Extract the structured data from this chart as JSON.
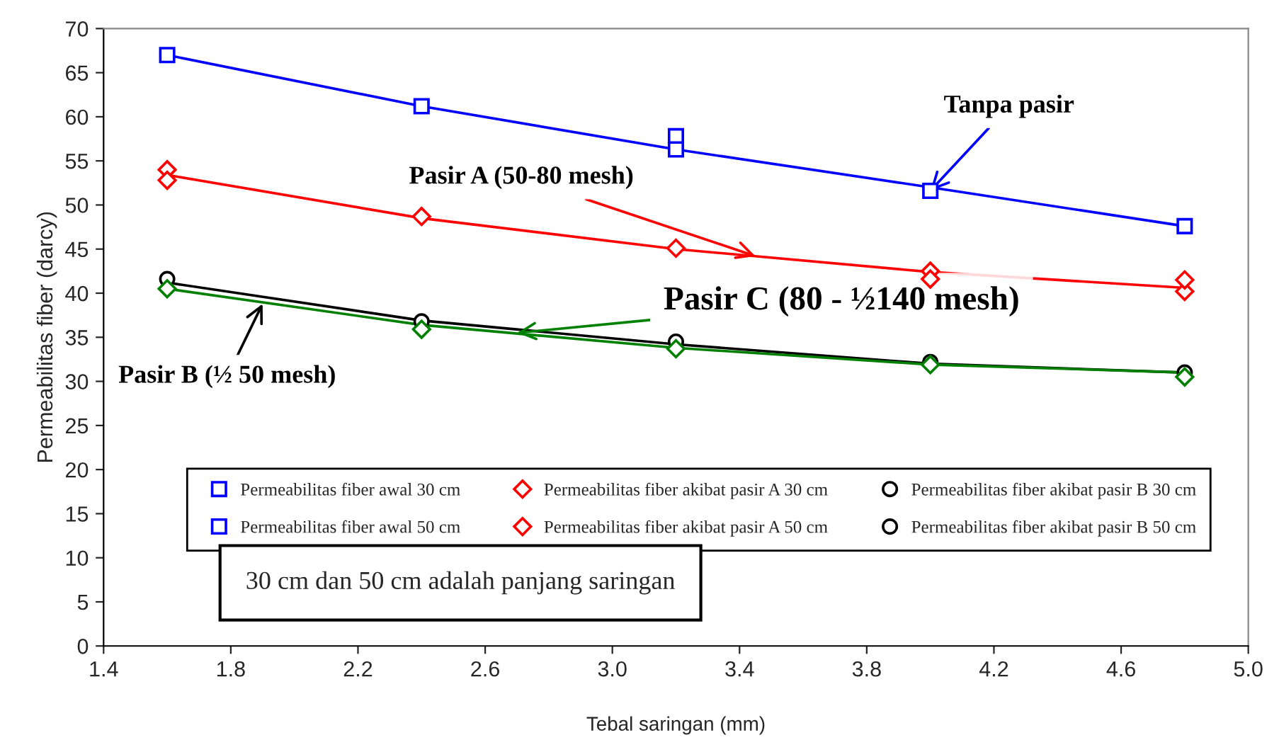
{
  "chart_data": {
    "type": "scatter",
    "xlabel": "Tebal saringan (mm)",
    "ylabel": "Permeabilitas fiber (darcy)",
    "x": [
      1.6,
      2.4,
      3.2,
      4.0,
      4.8
    ],
    "series": [
      {
        "name": "Permeabilitas fiber awal 30 cm",
        "color": "#0000ff",
        "marker": "square",
        "values": [
          null,
          null,
          57.8,
          null,
          null
        ]
      },
      {
        "name": "Permeabilitas fiber awal 50 cm",
        "color": "#0000ff",
        "marker": "square",
        "values": [
          67.0,
          61.2,
          56.3,
          51.6,
          47.6
        ]
      },
      {
        "name": "Permeabilitas fiber akibat pasir A 30 cm",
        "color": "#ff0000",
        "marker": "diamond",
        "values": [
          54.0,
          null,
          null,
          42.5,
          40.2
        ]
      },
      {
        "name": "Permeabilitas fiber akibat pasir A 50 cm",
        "color": "#ff0000",
        "marker": "diamond",
        "values": [
          52.8,
          48.7,
          45.1,
          41.6,
          41.5
        ]
      },
      {
        "name": "Permeabilitas fiber akibat pasir B 30 cm",
        "color": "#000000",
        "marker": "circle",
        "values": [
          null,
          36.8,
          34.5,
          32.2,
          31.0
        ]
      },
      {
        "name": "Permeabilitas fiber akibat pasir B 50 cm",
        "color": "#000000",
        "marker": "circle",
        "values": [
          41.6,
          null,
          null,
          null,
          null
        ]
      },
      {
        "color": "#008000",
        "marker": "diamond",
        "values": [
          40.5,
          35.9,
          33.7,
          31.9,
          30.5
        ]
      },
      {
        "type": "line",
        "color": "#0000ff",
        "marker": "none",
        "values": [
          67.0,
          61.2,
          56.3,
          52.0,
          47.6
        ]
      },
      {
        "type": "line",
        "color": "#ff0000",
        "marker": "none",
        "values": [
          53.4,
          48.5,
          45.0,
          42.4,
          40.6
        ]
      },
      {
        "type": "line",
        "color": "#000000",
        "marker": "none",
        "values": [
          41.2,
          36.9,
          34.2,
          32.0,
          31.0
        ]
      },
      {
        "type": "line",
        "color": "#008000",
        "marker": "none",
        "values": [
          40.5,
          36.4,
          33.8,
          31.9,
          31.0
        ]
      }
    ],
    "annotations": [
      {
        "text": "Tanpa pasir",
        "x": 4.0,
        "y": 51.6
      },
      {
        "text": "Pasir A (50-80 mesh)",
        "x": 3.45,
        "y": 44.2
      },
      {
        "text": "Pasir C (80 - ½140 mesh)",
        "x": 2.7,
        "y": 35.5
      },
      {
        "text": "Pasir B (½ 50 mesh)",
        "x": 1.9,
        "y": 38.8
      },
      "30 cm dan 50 cm adalah panjang saringan"
    ],
    "xlim": [
      1.4,
      5.0
    ],
    "xticks": [
      {
        "value": 1.4,
        "label": "1.4"
      },
      {
        "value": 1.8,
        "label": "1.8"
      },
      {
        "value": 2.2,
        "label": "2.2"
      },
      {
        "value": 2.6,
        "label": "2.6"
      },
      {
        "value": 3.0,
        "label": "3.0"
      },
      {
        "value": 3.4,
        "label": "3.4"
      },
      {
        "value": 3.8,
        "label": "3.8"
      },
      {
        "value": 4.2,
        "label": "4.2"
      },
      {
        "value": 4.6,
        "label": "4.6"
      },
      {
        "value": 5.0,
        "label": "5.0"
      }
    ],
    "ylim": [
      0,
      70
    ],
    "yticks": [
      0,
      5,
      10,
      15,
      20,
      25,
      30,
      35,
      40,
      45,
      50,
      55,
      60,
      65,
      70
    ],
    "grid": false,
    "legend": "bottom",
    "line_style": "solid"
  }
}
